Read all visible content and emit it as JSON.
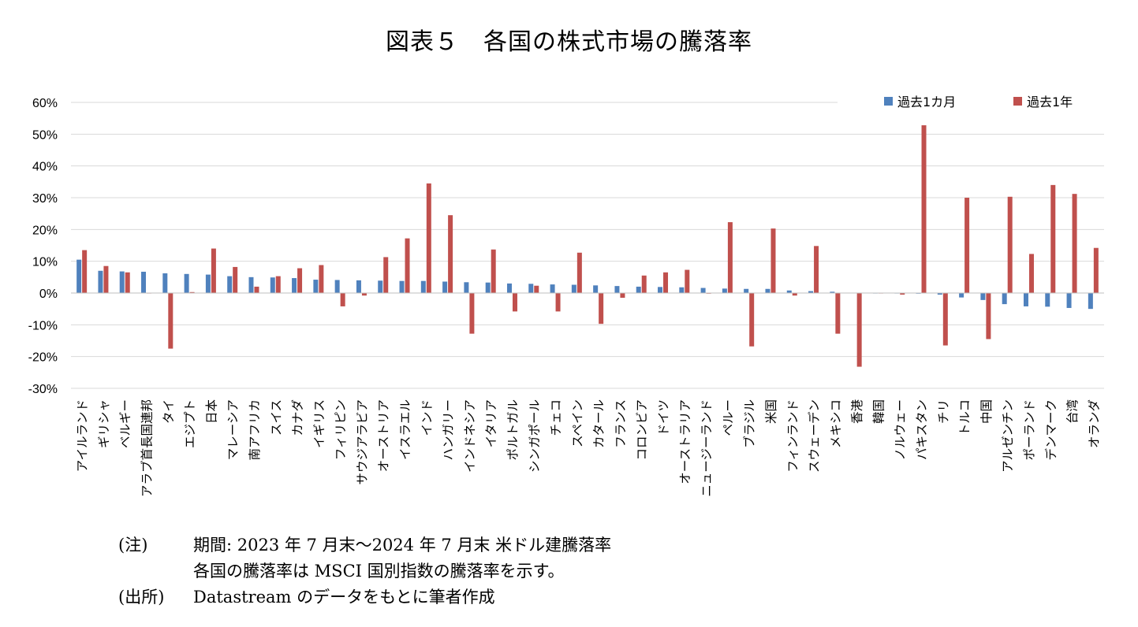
{
  "title": "図表５　各国の株式市場の騰落率",
  "chart_data": {
    "type": "bar",
    "y_unit": "%",
    "ylim": [
      -30,
      60
    ],
    "y_ticks": [
      60,
      50,
      40,
      30,
      20,
      10,
      0,
      -10,
      -20,
      -30
    ],
    "y_tick_labels": [
      "60%",
      "50%",
      "40%",
      "30%",
      "20%",
      "10%",
      "0%",
      "-10%",
      "-20%",
      "-30%"
    ],
    "grid": true,
    "legend_position": "top-right",
    "categories": [
      "アイルランド",
      "ギリシャ",
      "ベルギー",
      "アラブ首長国連邦",
      "タイ",
      "エジプト",
      "日本",
      "マレーシア",
      "南アフリカ",
      "スイス",
      "カナダ",
      "イギリス",
      "フィリピン",
      "サウジアラビア",
      "オーストリア",
      "イスラエル",
      "インド",
      "ハンガリー",
      "インドネシア",
      "イタリア",
      "ポルトガル",
      "シンガポール",
      "チェコ",
      "スペイン",
      "カタール",
      "フランス",
      "コロンビア",
      "ドイツ",
      "オーストラリア",
      "ニュージーランド",
      "ペルー",
      "ブラジル",
      "米国",
      "フィンランド",
      "スウェーデン",
      "メキシコ",
      "香港",
      "韓国",
      "ノルウェー",
      "パキスタン",
      "チリ",
      "トルコ",
      "中国",
      "アルゼンチン",
      "ポーランド",
      "デンマーク",
      "台湾",
      "オランダ"
    ],
    "series": [
      {
        "name": "過去1カ月",
        "color": "#4f81bd",
        "values": [
          10.5,
          7.0,
          6.8,
          6.7,
          6.2,
          6.0,
          5.8,
          5.3,
          5.0,
          4.9,
          4.7,
          4.2,
          4.1,
          4.0,
          3.9,
          3.8,
          3.8,
          3.6,
          3.4,
          3.3,
          3.0,
          2.9,
          2.7,
          2.6,
          2.4,
          2.2,
          2.0,
          1.9,
          1.8,
          1.6,
          1.4,
          1.3,
          1.3,
          0.8,
          0.6,
          0.4,
          0.1,
          0.0,
          -0.1,
          -0.2,
          -0.5,
          -1.4,
          -2.2,
          -3.5,
          -4.2,
          -4.3,
          -4.7,
          -5.0
        ]
      },
      {
        "name": "過去1年",
        "color": "#c0504d",
        "values": [
          13.5,
          8.5,
          6.5,
          0.0,
          -17.5,
          0.3,
          14.0,
          8.2,
          2.0,
          5.3,
          7.8,
          8.8,
          -4.2,
          -0.8,
          11.3,
          17.2,
          34.5,
          24.5,
          -12.8,
          13.7,
          -5.8,
          2.3,
          -5.8,
          12.7,
          -9.7,
          -1.5,
          5.5,
          6.5,
          7.3,
          -0.2,
          22.3,
          -16.8,
          20.3,
          -0.8,
          14.8,
          -12.8,
          -23.2,
          -0.1,
          -0.5,
          52.8,
          -16.5,
          30.0,
          -14.5,
          30.3,
          12.3,
          34.0,
          31.2,
          14.2
        ]
      }
    ]
  },
  "notes": [
    {
      "label": "(注)",
      "text": "期間: 2023 年 7 月末～2024 年 7 月末 米ドル建騰落率"
    },
    {
      "label": "",
      "text": "各国の騰落率は MSCI 国別指数の騰落率を示す。"
    },
    {
      "label": "(出所)",
      "text": "Datastream のデータをもとに筆者作成"
    }
  ]
}
